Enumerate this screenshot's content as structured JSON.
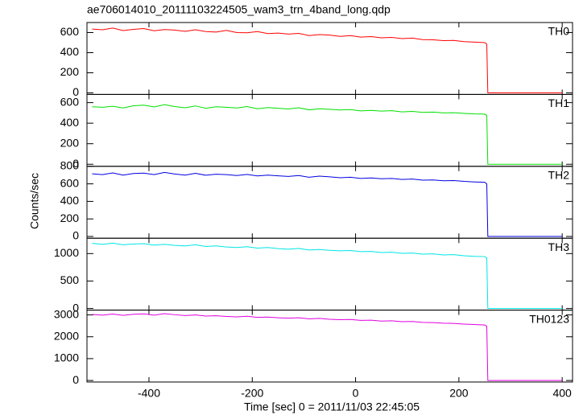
{
  "chart_data": [
    {
      "type": "line",
      "title": "ae706014010_20111103224505_wam3_trn_4band_long.qdp",
      "x": [
        -510,
        -490,
        -470,
        -450,
        -430,
        -410,
        -390,
        -370,
        -350,
        -330,
        -310,
        -290,
        -270,
        -250,
        -230,
        -210,
        -190,
        -170,
        -150,
        -130,
        -110,
        -90,
        -70,
        -50,
        -30,
        -10,
        10,
        30,
        50,
        70,
        90,
        110,
        130,
        150,
        170,
        190,
        210,
        230,
        250,
        254,
        256,
        400
      ],
      "xlim": [
        -520,
        420
      ],
      "ylim": [
        -15,
        700
      ],
      "yticks": [
        0,
        200,
        400,
        600
      ],
      "series": [
        {
          "name": "TH0",
          "color": "#ff0000",
          "values": [
            635,
            628,
            645,
            620,
            632,
            640,
            618,
            630,
            625,
            612,
            628,
            610,
            605,
            622,
            600,
            598,
            610,
            590,
            595,
            585,
            592,
            570,
            580,
            575,
            562,
            570,
            555,
            560,
            548,
            552,
            540,
            545,
            530,
            528,
            520,
            522,
            510,
            505,
            500,
            485,
            0,
            0
          ]
        }
      ]
    },
    {
      "type": "line",
      "x": [
        -510,
        -490,
        -470,
        -450,
        -430,
        -410,
        -390,
        -370,
        -350,
        -330,
        -310,
        -290,
        -270,
        -250,
        -230,
        -210,
        -190,
        -170,
        -150,
        -130,
        -110,
        -90,
        -70,
        -50,
        -30,
        -10,
        10,
        30,
        50,
        70,
        90,
        110,
        130,
        150,
        170,
        190,
        210,
        230,
        250,
        254,
        256,
        400
      ],
      "xlim": [
        -520,
        420
      ],
      "ylim": [
        -20,
        680
      ],
      "yticks": [
        0,
        200,
        400,
        600
      ],
      "series": [
        {
          "name": "TH1",
          "color": "#00e000",
          "values": [
            560,
            555,
            565,
            548,
            570,
            575,
            558,
            580,
            562,
            550,
            568,
            545,
            560,
            555,
            548,
            562,
            540,
            552,
            545,
            538,
            550,
            530,
            540,
            535,
            528,
            532,
            520,
            525,
            518,
            522,
            510,
            515,
            505,
            508,
            500,
            502,
            495,
            490,
            488,
            475,
            0,
            0
          ]
        }
      ]
    },
    {
      "type": "line",
      "ylabel": "Counts/sec",
      "x": [
        -510,
        -490,
        -470,
        -450,
        -430,
        -410,
        -390,
        -370,
        -350,
        -330,
        -310,
        -290,
        -270,
        -250,
        -230,
        -210,
        -190,
        -170,
        -150,
        -130,
        -110,
        -90,
        -70,
        -50,
        -30,
        -10,
        10,
        30,
        50,
        70,
        90,
        110,
        130,
        150,
        170,
        190,
        210,
        230,
        250,
        254,
        256,
        400
      ],
      "xlim": [
        -520,
        420
      ],
      "ylim": [
        -20,
        800
      ],
      "yticks": [
        0,
        200,
        400,
        600,
        800
      ],
      "series": [
        {
          "name": "TH2",
          "color": "#0000e0",
          "values": [
            715,
            705,
            725,
            700,
            718,
            722,
            705,
            730,
            712,
            700,
            720,
            698,
            710,
            705,
            695,
            708,
            690,
            700,
            692,
            685,
            695,
            675,
            688,
            680,
            670,
            676,
            662,
            668,
            658,
            662,
            650,
            655,
            642,
            645,
            635,
            638,
            628,
            622,
            618,
            600,
            0,
            0
          ]
        }
      ]
    },
    {
      "type": "line",
      "x": [
        -510,
        -490,
        -470,
        -450,
        -430,
        -410,
        -390,
        -370,
        -350,
        -330,
        -310,
        -290,
        -270,
        -250,
        -230,
        -210,
        -190,
        -170,
        -150,
        -130,
        -110,
        -90,
        -70,
        -50,
        -30,
        -10,
        10,
        30,
        50,
        70,
        90,
        110,
        130,
        150,
        170,
        190,
        210,
        230,
        250,
        254,
        256,
        400
      ],
      "xlim": [
        -520,
        420
      ],
      "ylim": [
        -30,
        1280
      ],
      "yticks": [
        0,
        500,
        1000
      ],
      "series": [
        {
          "name": "TH3",
          "color": "#00e5e5",
          "values": [
            1185,
            1170,
            1190,
            1160,
            1175,
            1180,
            1155,
            1170,
            1150,
            1140,
            1160,
            1130,
            1140,
            1120,
            1110,
            1125,
            1100,
            1110,
            1090,
            1080,
            1095,
            1065,
            1075,
            1060,
            1050,
            1055,
            1035,
            1040,
            1020,
            1025,
            1005,
            1010,
            990,
            995,
            975,
            980,
            960,
            950,
            945,
            920,
            0,
            0
          ]
        }
      ]
    },
    {
      "type": "line",
      "xlabel": "Time [sec] 0 = 2011/11/03 22:45:05",
      "x": [
        -510,
        -490,
        -470,
        -450,
        -430,
        -410,
        -390,
        -370,
        -350,
        -330,
        -310,
        -290,
        -270,
        -250,
        -230,
        -210,
        -190,
        -170,
        -150,
        -130,
        -110,
        -90,
        -70,
        -50,
        -30,
        -10,
        10,
        30,
        50,
        70,
        90,
        110,
        130,
        150,
        170,
        190,
        210,
        230,
        250,
        254,
        256,
        400
      ],
      "xlim": [
        -520,
        420
      ],
      "ylim": [
        -70,
        3220
      ],
      "yticks": [
        0,
        1000,
        2000,
        3000
      ],
      "xticks": [
        -400,
        -200,
        0,
        200,
        400
      ],
      "series": [
        {
          "name": "TH0123",
          "color": "#e000e0",
          "values": [
            3020,
            2990,
            3040,
            2980,
            3030,
            3050,
            2990,
            3060,
            3010,
            2970,
            3000,
            2950,
            2960,
            2930,
            2910,
            2940,
            2890,
            2900,
            2870,
            2850,
            2870,
            2820,
            2840,
            2800,
            2780,
            2790,
            2750,
            2760,
            2720,
            2730,
            2690,
            2700,
            2660,
            2650,
            2620,
            2610,
            2580,
            2560,
            2540,
            2480,
            0,
            0
          ]
        }
      ]
    }
  ]
}
